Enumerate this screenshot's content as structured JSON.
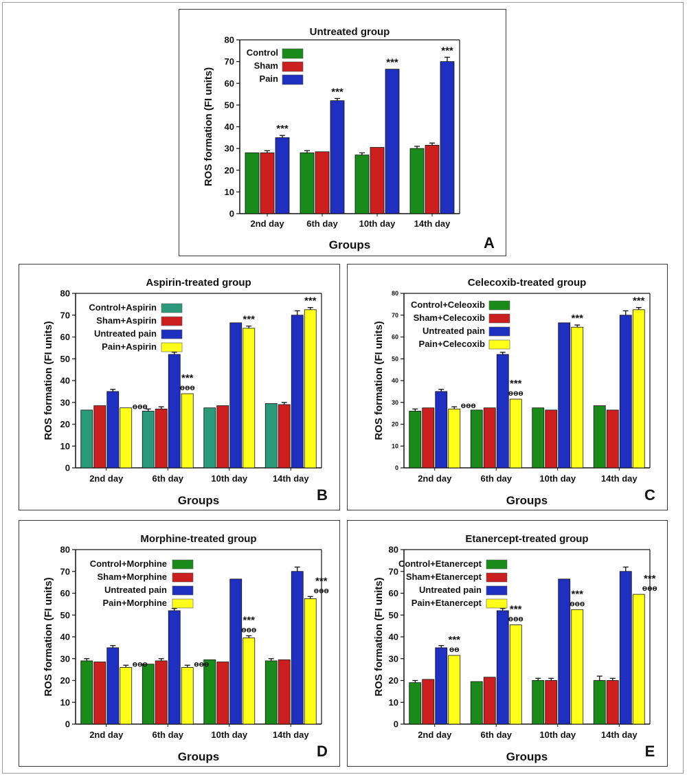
{
  "chart_data": [
    {
      "panel": "A",
      "type": "bar",
      "title": "Untreated group",
      "ylabel": "ROS formation (FI units)",
      "xlabel": "Groups",
      "ylim": [
        0,
        80
      ],
      "yticks": [
        0,
        10,
        20,
        30,
        40,
        50,
        60,
        70,
        80
      ],
      "categories": [
        "2nd day",
        "6th day",
        "10th day",
        "14th day"
      ],
      "legend_position": "top-left",
      "series": [
        {
          "name": "Control",
          "color": "#1a8a1a",
          "values": [
            28,
            28,
            27,
            30
          ],
          "errors": [
            0,
            1,
            1,
            1
          ]
        },
        {
          "name": "Sham",
          "color": "#cc1f1f",
          "values": [
            28,
            28.5,
            30.5,
            31.5
          ],
          "errors": [
            1,
            0,
            0,
            1
          ]
        },
        {
          "name": "Pain",
          "color": "#1f2fbf",
          "values": [
            35,
            52,
            66.5,
            70
          ],
          "errors": [
            1,
            1,
            0,
            2
          ]
        }
      ],
      "annotations": [
        {
          "category": 0,
          "series": 2,
          "lines": [
            "***"
          ]
        },
        {
          "category": 1,
          "series": 2,
          "lines": [
            "***"
          ]
        },
        {
          "category": 2,
          "series": 2,
          "lines": [
            "***"
          ]
        },
        {
          "category": 3,
          "series": 2,
          "lines": [
            "***"
          ]
        }
      ]
    },
    {
      "panel": "B",
      "type": "bar",
      "title": "Aspirin-treated group",
      "ylabel": "ROS formation (FI units)",
      "xlabel": "Groups",
      "ylim": [
        0,
        80
      ],
      "yticks": [
        0,
        10,
        20,
        30,
        40,
        50,
        60,
        70,
        80
      ],
      "categories": [
        "2nd day",
        "6th day",
        "10th day",
        "14th day"
      ],
      "legend_position": "top-left",
      "series": [
        {
          "name": "Control+Aspirin",
          "color": "#2a9a7a",
          "values": [
            26.5,
            26,
            27.5,
            29.5
          ],
          "errors": [
            0,
            1,
            0,
            0
          ]
        },
        {
          "name": "Sham+Aspirin",
          "color": "#cc1f1f",
          "values": [
            28.5,
            27,
            28.5,
            29
          ],
          "errors": [
            0,
            1,
            0,
            1
          ]
        },
        {
          "name": "Untreated pain",
          "color": "#1f2fbf",
          "values": [
            35,
            52,
            66.5,
            70
          ],
          "errors": [
            1,
            1,
            0,
            2
          ]
        },
        {
          "name": "Pain+Aspirin",
          "color": "#ffff1a",
          "values": [
            27.5,
            34,
            64,
            72.5
          ],
          "errors": [
            0,
            0,
            1,
            1
          ]
        }
      ],
      "annotations": [
        {
          "category": 0,
          "series": 3,
          "lines": [
            "ɵɵɵ"
          ],
          "side": true
        },
        {
          "category": 1,
          "series": 3,
          "lines": [
            "***",
            "ɵɵɵ"
          ]
        },
        {
          "category": 2,
          "series": 3,
          "lines": [
            "***"
          ]
        },
        {
          "category": 3,
          "series": 3,
          "lines": [
            "***"
          ]
        }
      ]
    },
    {
      "panel": "C",
      "type": "bar",
      "title": "Celecoxib-treated group",
      "ylabel": "ROS formation (FI units)",
      "xlabel": "Groups",
      "ylim": [
        0,
        80
      ],
      "yticks": [
        0,
        10,
        20,
        30,
        40,
        50,
        60,
        70,
        80
      ],
      "categories": [
        "2nd day",
        "6th day",
        "10th day",
        "14th day"
      ],
      "legend_position": "top-left",
      "series": [
        {
          "name": "Control+Celeoxib",
          "color": "#1a8a1a",
          "values": [
            26,
            26.5,
            27.5,
            28.5
          ],
          "errors": [
            1,
            0,
            0,
            0
          ]
        },
        {
          "name": "Sham+Celecoxib",
          "color": "#cc1f1f",
          "values": [
            27.5,
            27.5,
            26.5,
            26.5
          ],
          "errors": [
            0,
            0,
            0,
            0
          ]
        },
        {
          "name": "Untreated pain",
          "color": "#1f2fbf",
          "values": [
            35,
            52,
            66.5,
            70
          ],
          "errors": [
            1,
            1,
            0,
            2
          ]
        },
        {
          "name": "Pain+Celecoxib",
          "color": "#ffff1a",
          "values": [
            27,
            31.5,
            64.5,
            72.5
          ],
          "errors": [
            1,
            0,
            1,
            1
          ]
        }
      ],
      "annotations": [
        {
          "category": 0,
          "series": 3,
          "lines": [
            "ɵɵɵ"
          ],
          "side": true
        },
        {
          "category": 1,
          "series": 3,
          "lines": [
            "***",
            "ɵɵɵ"
          ]
        },
        {
          "category": 2,
          "series": 3,
          "lines": [
            "***"
          ]
        },
        {
          "category": 3,
          "series": 3,
          "lines": [
            "***"
          ]
        }
      ]
    },
    {
      "panel": "D",
      "type": "bar",
      "title": "Morphine-treated group",
      "ylabel": "ROS formation (FI units)",
      "xlabel": "Groups",
      "ylim": [
        0,
        80
      ],
      "yticks": [
        0,
        10,
        20,
        30,
        40,
        50,
        60,
        70,
        80
      ],
      "categories": [
        "2nd day",
        "6th day",
        "10th day",
        "14th day"
      ],
      "legend_position": "top-left",
      "series": [
        {
          "name": "Control+Morphine",
          "color": "#1a8a1a",
          "values": [
            29,
            27.5,
            29.5,
            29
          ],
          "errors": [
            1,
            0,
            0,
            1
          ]
        },
        {
          "name": "Sham+Morphine",
          "color": "#cc1f1f",
          "values": [
            28.5,
            29,
            28.5,
            29.5
          ],
          "errors": [
            0,
            1,
            0,
            0
          ]
        },
        {
          "name": "Untreated pain",
          "color": "#1f2fbf",
          "values": [
            35,
            52,
            66.5,
            70
          ],
          "errors": [
            1,
            1,
            0,
            2
          ]
        },
        {
          "name": "Pain+Morphine",
          "color": "#ffff1a",
          "values": [
            26,
            26,
            39.5,
            57.5
          ],
          "errors": [
            1,
            1,
            1,
            1
          ]
        }
      ],
      "annotations": [
        {
          "category": 0,
          "series": 3,
          "lines": [
            "ɵɵɵ"
          ],
          "side": true
        },
        {
          "category": 1,
          "series": 3,
          "lines": [
            "ɵɵɵ"
          ],
          "side": true
        },
        {
          "category": 2,
          "series": 3,
          "lines": [
            "***",
            "ɵɵɵ"
          ]
        },
        {
          "category": 3,
          "series": 3,
          "lines": [
            "***",
            "ɵɵɵ"
          ],
          "offset": 16
        }
      ]
    },
    {
      "panel": "E",
      "type": "bar",
      "title": "Etanercept-treated group",
      "ylabel": "ROS formation (FI units)",
      "xlabel": "Groups",
      "ylim": [
        0,
        80
      ],
      "yticks": [
        0,
        10,
        20,
        30,
        40,
        50,
        60,
        70,
        80
      ],
      "categories": [
        "2nd day",
        "6th day",
        "10th day",
        "14th day"
      ],
      "legend_position": "top-left",
      "series": [
        {
          "name": "Control+Etanercept",
          "color": "#1a8a1a",
          "values": [
            19,
            19.5,
            20,
            20
          ],
          "errors": [
            1,
            0,
            1,
            2
          ]
        },
        {
          "name": "Sham+Etanercept",
          "color": "#cc1f1f",
          "values": [
            20.5,
            21.5,
            20,
            20
          ],
          "errors": [
            0,
            0,
            1,
            1
          ]
        },
        {
          "name": "Untreated pain",
          "color": "#1f2fbf",
          "values": [
            35,
            52,
            66.5,
            70
          ],
          "errors": [
            1,
            1,
            0,
            2
          ]
        },
        {
          "name": "Pain+Etanercept",
          "color": "#ffff1a",
          "values": [
            31.5,
            45.5,
            52.5,
            59.5
          ],
          "errors": [
            0,
            0,
            0,
            0
          ]
        }
      ],
      "annotations": [
        {
          "category": 0,
          "series": 3,
          "lines": [
            "***",
            "ɵɵ"
          ]
        },
        {
          "category": 1,
          "series": 3,
          "lines": [
            "***",
            "ɵɵɵ"
          ]
        },
        {
          "category": 2,
          "series": 3,
          "lines": [
            "***",
            "ɵɵɵ"
          ]
        },
        {
          "category": 3,
          "series": 3,
          "lines": [
            "***",
            "ɵɵɵ"
          ],
          "offset": 16
        }
      ]
    }
  ]
}
